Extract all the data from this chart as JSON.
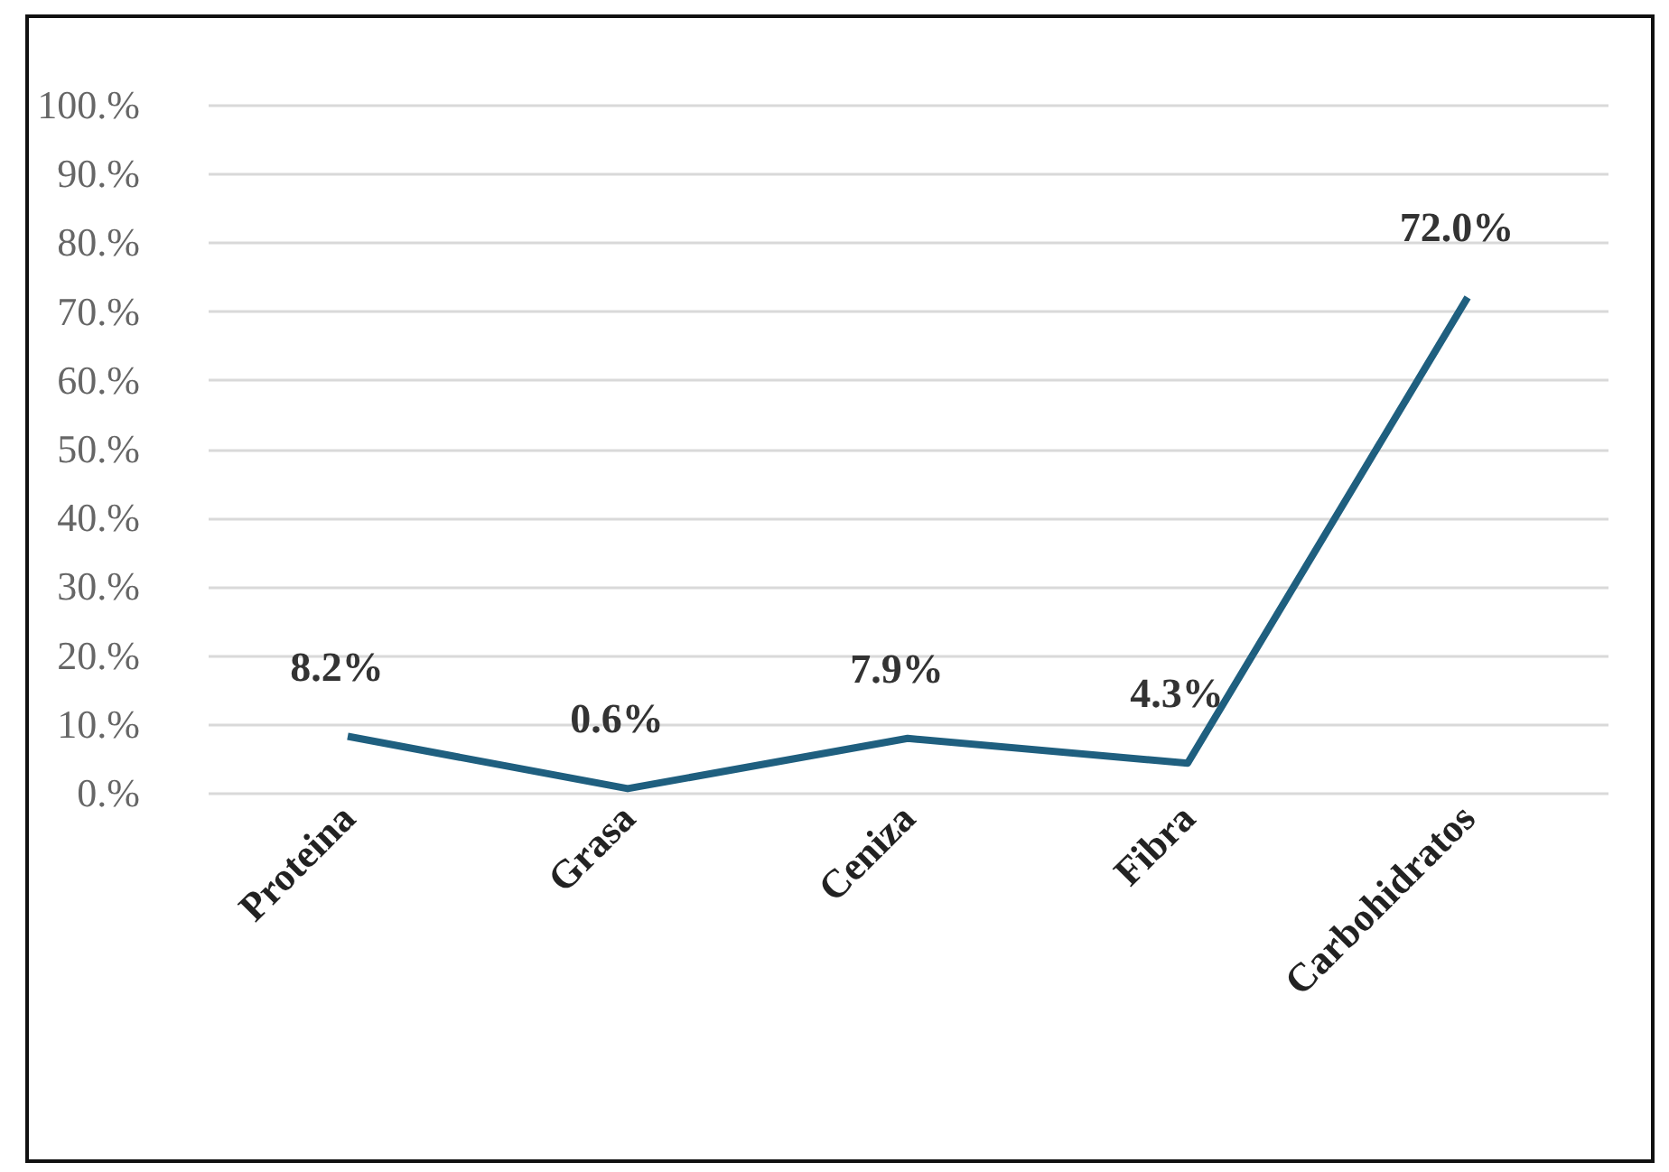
{
  "chart_data": {
    "type": "line",
    "categories": [
      "Proteina",
      "Grasa",
      "Ceniza",
      "Fibra",
      "Carbohidratos"
    ],
    "series": [
      {
        "color": "#1f5f7f",
        "values": [
          8.2,
          0.6,
          7.9,
          4.3,
          72.0
        ],
        "value_labels": [
          "8.2%",
          "0.6%",
          "7.9%",
          "4.3%",
          "72.0%"
        ]
      }
    ],
    "ylim": [
      0,
      100
    ],
    "yticks": [
      {
        "value": 0,
        "label": "0.%"
      },
      {
        "value": 10,
        "label": "10.%"
      },
      {
        "value": 20,
        "label": "20.%"
      },
      {
        "value": 30,
        "label": "30.%"
      },
      {
        "value": 40,
        "label": "40.%"
      },
      {
        "value": 50,
        "label": "50.%"
      },
      {
        "value": 60,
        "label": "60.%"
      },
      {
        "value": 70,
        "label": "70.%"
      },
      {
        "value": 80,
        "label": "80.%"
      },
      {
        "value": 90,
        "label": "90.%"
      },
      {
        "value": 100,
        "label": "100.%"
      }
    ],
    "grid": "y",
    "marker": "none",
    "line_style": "solid"
  }
}
